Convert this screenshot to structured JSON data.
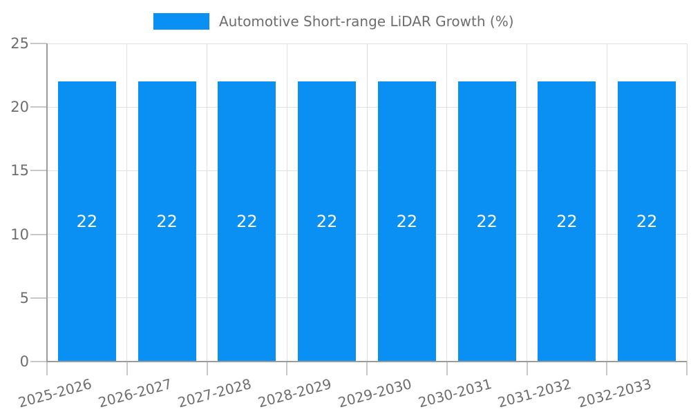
{
  "legend": {
    "position": "top"
  },
  "chart_data": {
    "type": "bar",
    "title": "",
    "xlabel": "",
    "ylabel": "",
    "categories": [
      "2025-2026",
      "2026-2027",
      "2027-2028",
      "2028-2029",
      "2029-2030",
      "2030-2031",
      "2031-2032",
      "2032-2033"
    ],
    "series": [
      {
        "name": "Automotive Short-range LiDAR Growth (%)",
        "values": [
          22,
          22,
          22,
          22,
          22,
          22,
          22,
          22
        ]
      }
    ],
    "bar_value_labels": [
      "22",
      "22",
      "22",
      "22",
      "22",
      "22",
      "22",
      "22"
    ],
    "ylim": [
      0,
      25
    ],
    "yticks": [
      0,
      5,
      10,
      15,
      20,
      25
    ],
    "grid": true,
    "legend_position": "top",
    "x_label_rotation_deg": -15,
    "colors": {
      "bar": "#0a8ff2",
      "bar_label": "#ffffff",
      "text": "#6e6e6e",
      "axis": "#9b9b9b",
      "gridline": "#e0e0e0",
      "tick": "#c8c8c8",
      "background": "#ffffff"
    }
  }
}
